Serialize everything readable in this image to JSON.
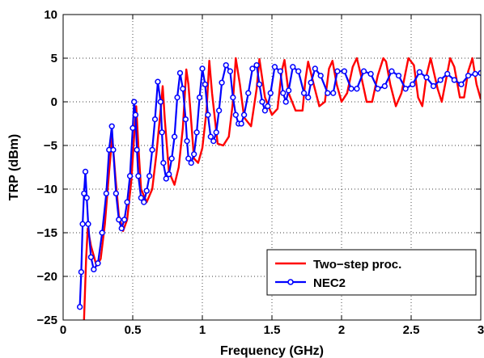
{
  "chart_data": {
    "type": "line",
    "xlabel": "Frequency (GHz)",
    "ylabel": "TRP (dBm)",
    "xlim": [
      0,
      3
    ],
    "ylim": [
      -25,
      10
    ],
    "xticks": [
      0,
      0.5,
      1,
      1.5,
      2,
      2.5,
      3
    ],
    "xtick_labels": [
      "0",
      "0.5",
      "1",
      "1.5",
      "2",
      "2.5",
      "3"
    ],
    "yticks": [
      -25,
      -20,
      -15,
      -10,
      -5,
      0,
      5,
      10
    ],
    "ytick_labels": [
      "−25",
      "−20",
      "−15",
      "−10",
      "−5",
      "0",
      "5",
      "10"
    ],
    "grid": true,
    "legend_position": "lower-right",
    "series": [
      {
        "name": "Two−step proc.",
        "color": "#ff0000",
        "marker": "none",
        "x": [
          0.15,
          0.165,
          0.177,
          0.2,
          0.24,
          0.27,
          0.3,
          0.33,
          0.353,
          0.375,
          0.4,
          0.43,
          0.46,
          0.49,
          0.51,
          0.525,
          0.54,
          0.56,
          0.6,
          0.64,
          0.67,
          0.7,
          0.715,
          0.73,
          0.76,
          0.8,
          0.83,
          0.86,
          0.885,
          0.9,
          0.94,
          0.97,
          1.0,
          1.03,
          1.05,
          1.07,
          1.11,
          1.15,
          1.19,
          1.22,
          1.24,
          1.27,
          1.3,
          1.35,
          1.39,
          1.41,
          1.45,
          1.5,
          1.54,
          1.57,
          1.59,
          1.62,
          1.67,
          1.72,
          1.74,
          1.76,
          1.8,
          1.84,
          1.88,
          1.91,
          1.935,
          1.965,
          2.0,
          2.04,
          2.08,
          2.11,
          2.14,
          2.18,
          2.22,
          2.26,
          2.3,
          2.32,
          2.35,
          2.39,
          2.43,
          2.48,
          2.52,
          2.55,
          2.58,
          2.61,
          2.64,
          2.69,
          2.72,
          2.75,
          2.78,
          2.81,
          2.85,
          2.88,
          2.91,
          2.94,
          2.97,
          3.0
        ],
        "y": [
          -25,
          -18,
          -14.5,
          -16.5,
          -18.8,
          -18,
          -14,
          -8,
          -4,
          -8.5,
          -13,
          -14.8,
          -13.5,
          -9,
          -4,
          -0.5,
          -5,
          -10,
          -11.5,
          -10,
          -6,
          -1,
          1.8,
          -2,
          -8,
          -9.5,
          -7.5,
          -3,
          3.7,
          2,
          -6.5,
          -7,
          -5.3,
          -1,
          4.7,
          1,
          -4.8,
          -5,
          -4,
          0,
          5,
          2,
          -1.8,
          -2.8,
          1.5,
          4.9,
          0.5,
          -1.5,
          -0.8,
          3.5,
          4.8,
          1,
          -1,
          -1,
          2.5,
          4.6,
          2,
          -0.5,
          0,
          3.8,
          4.7,
          2,
          0,
          1,
          4,
          5,
          3,
          0,
          0,
          3,
          5,
          4.6,
          2,
          -0.5,
          1,
          5,
          4.2,
          0.5,
          -0.5,
          3,
          5,
          1.5,
          0,
          2.5,
          5,
          4,
          0.5,
          0.5,
          3.5,
          5,
          2,
          0.3
        ]
      },
      {
        "name": "NEC2",
        "color": "#0000ff",
        "marker": "circle",
        "x": [
          0.12,
          0.13,
          0.14,
          0.15,
          0.16,
          0.17,
          0.18,
          0.2,
          0.22,
          0.25,
          0.28,
          0.31,
          0.33,
          0.35,
          0.36,
          0.38,
          0.4,
          0.42,
          0.44,
          0.46,
          0.48,
          0.5,
          0.51,
          0.52,
          0.53,
          0.54,
          0.56,
          0.58,
          0.6,
          0.62,
          0.64,
          0.66,
          0.68,
          0.7,
          0.71,
          0.72,
          0.74,
          0.76,
          0.78,
          0.8,
          0.82,
          0.84,
          0.86,
          0.88,
          0.89,
          0.9,
          0.92,
          0.94,
          0.96,
          0.98,
          1.0,
          1.02,
          1.04,
          1.06,
          1.08,
          1.1,
          1.12,
          1.14,
          1.17,
          1.2,
          1.22,
          1.24,
          1.26,
          1.28,
          1.3,
          1.33,
          1.36,
          1.39,
          1.41,
          1.43,
          1.45,
          1.47,
          1.49,
          1.52,
          1.56,
          1.58,
          1.6,
          1.62,
          1.65,
          1.69,
          1.73,
          1.76,
          1.78,
          1.81,
          1.85,
          1.9,
          1.94,
          1.97,
          2.02,
          2.07,
          2.11,
          2.16,
          2.21,
          2.26,
          2.31,
          2.36,
          2.41,
          2.46,
          2.51,
          2.56,
          2.61,
          2.66,
          2.71,
          2.76,
          2.81,
          2.86,
          2.91,
          2.96,
          3.0
        ],
        "y": [
          -23.5,
          -19.5,
          -14,
          -10.5,
          -8,
          -11,
          -14,
          -17.8,
          -19.2,
          -18.5,
          -15,
          -10.5,
          -5.5,
          -2.8,
          -5.5,
          -10.5,
          -13.5,
          -14.5,
          -13.5,
          -11.5,
          -8.5,
          -3,
          0,
          -1.5,
          -5.5,
          -8.5,
          -11,
          -11.5,
          -10.2,
          -8.5,
          -5.5,
          -2,
          2.3,
          0,
          -3.5,
          -7,
          -8.8,
          -8.3,
          -6.5,
          -4,
          0.5,
          3.3,
          1.5,
          -2,
          -4.5,
          -6.5,
          -7,
          -6,
          -3.5,
          0.5,
          3.8,
          2,
          -1.5,
          -4,
          -4.5,
          -3.5,
          -1,
          2.2,
          4.2,
          3.5,
          0.5,
          -1.5,
          -2.5,
          -2.5,
          -1.5,
          1,
          3.8,
          4.2,
          2,
          0,
          -1,
          -0.5,
          1,
          4,
          3.5,
          1,
          0,
          1.3,
          4,
          3.5,
          1,
          0.5,
          2.2,
          3.8,
          3,
          1,
          1,
          3.5,
          3.5,
          1.5,
          1.5,
          3.5,
          3.2,
          1.5,
          1.8,
          3.5,
          3,
          1.5,
          2,
          3.4,
          2.8,
          1.8,
          2.5,
          3.2,
          2.5,
          2,
          3,
          3.2,
          3.3
        ]
      }
    ]
  }
}
